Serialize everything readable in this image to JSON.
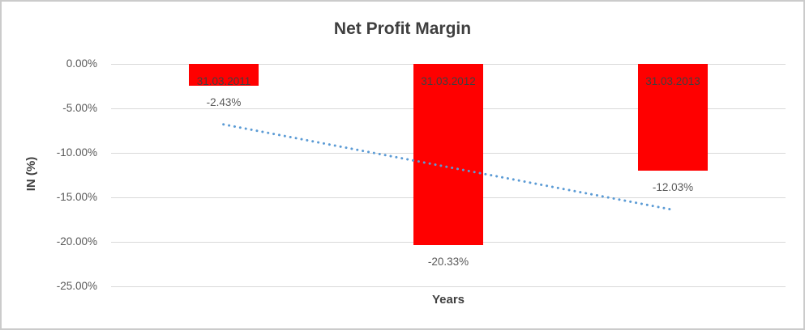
{
  "chart_data": {
    "type": "bar",
    "title": "Net Profit Margin",
    "xlabel": "Years",
    "ylabel": "IN (%)",
    "categories": [
      "31.03.2011",
      "31.03.2012",
      "31.03.2013"
    ],
    "values": [
      -2.43,
      -20.33,
      -12.03
    ],
    "data_labels": [
      "-2.43%",
      "-20.33%",
      "-12.03%"
    ],
    "y_ticks": [
      {
        "label": "0.00%",
        "value": 0
      },
      {
        "label": "-5.00%",
        "value": -5
      },
      {
        "label": "-10.00%",
        "value": -10
      },
      {
        "label": "-15.00%",
        "value": -15
      },
      {
        "label": "-20.00%",
        "value": -20
      },
      {
        "label": "-25.00%",
        "value": -25
      }
    ],
    "ylim": [
      -25,
      0
    ],
    "grid": true,
    "legend": "none",
    "bar_color": "#ff0000",
    "trendline": {
      "type": "linear",
      "style": "dotted",
      "color": "#5b9bd5",
      "start_value": -6.8,
      "end_value": -16.4
    }
  }
}
